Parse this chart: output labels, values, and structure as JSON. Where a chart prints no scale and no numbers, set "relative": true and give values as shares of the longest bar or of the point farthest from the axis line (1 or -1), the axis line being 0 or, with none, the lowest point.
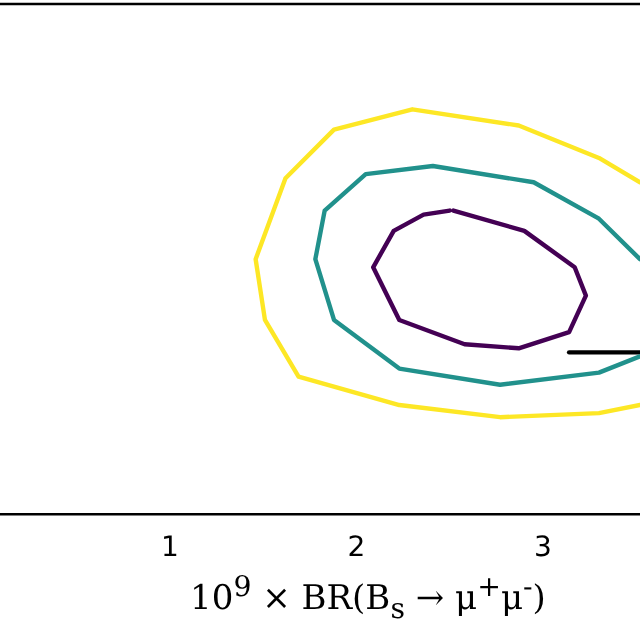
{
  "chart_data": {
    "type": "line",
    "xlabel": "10$^{9}$ × BR(B$_{s}$ → μ$^{+}$μ$^{-}$)",
    "relative": true,
    "xlim": [
      0.09,
      3.52
    ],
    "xticks": [
      1,
      2,
      3
    ],
    "tick_labels": "x",
    "grid": false,
    "legend": false,
    "series": [
      {
        "color": "#fde725",
        "x": [
          3.52,
          3.3,
          2.87,
          2.3,
          1.88,
          1.62,
          1.46,
          1.51,
          1.69,
          2.23,
          2.77,
          3.3,
          3.52
        ],
        "values": [
          0.82,
          0.88,
          0.96,
          1,
          0.95,
          0.83,
          0.63,
          0.48,
          0.34,
          0.27,
          0.24,
          0.25,
          0.27
        ]
      },
      {
        "color": "#21918c",
        "x": [
          3.52,
          3.3,
          2.95,
          2.41,
          2.05,
          1.83,
          1.78,
          1.88,
          2.23,
          2.77,
          3.3,
          3.52
        ],
        "values": [
          0.63,
          0.73,
          0.82,
          0.86,
          0.84,
          0.75,
          0.63,
          0.48,
          0.36,
          0.32,
          0.35,
          0.39
        ]
      },
      {
        "color": "#440154",
        "x": [
          2.52,
          2.9,
          3.17,
          3.23,
          3.14,
          2.87,
          2.58,
          2.23,
          2.09,
          2.2,
          2.36,
          2.5
        ],
        "values": [
          0.75,
          0.7,
          0.61,
          0.54,
          0.45,
          0.41,
          0.42,
          0.48,
          0.61,
          0.7,
          0.74,
          0.75
        ]
      },
      {
        "color": "#000000",
        "x": [
          3.14,
          3.52
        ],
        "values": [
          0.4,
          0.4
        ]
      }
    ]
  }
}
